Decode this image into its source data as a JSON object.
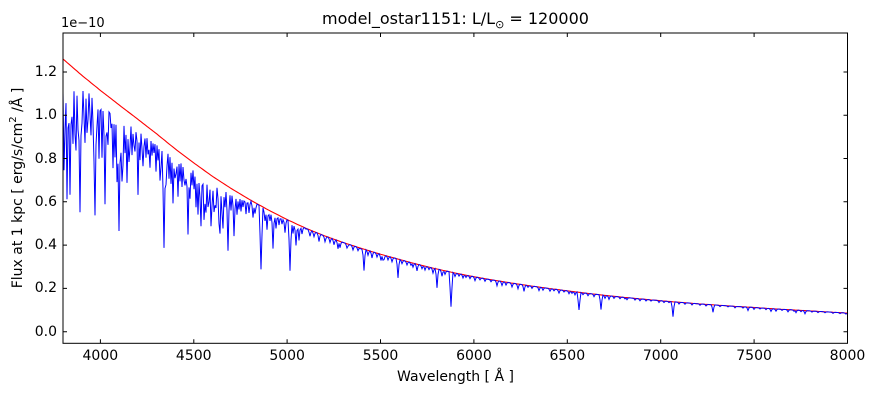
{
  "figure": {
    "background": "#ffffff",
    "frame_color": "#000000"
  },
  "title": {
    "prefix": "model_ostar1151: L/L",
    "sub": "⊙",
    "suffix": " = 120000"
  },
  "axis_labels": {
    "xlabel": "Wavelength [ Å ]",
    "ylabel_prefix": "Flux at 1 kpc [ erg/s/cm",
    "ylabel_sup": "2",
    "ylabel_suffix": " /Å ]",
    "y_offset_text": "1e−10"
  },
  "chart_data": {
    "type": "line",
    "title": "model_ostar1151: L/L⊙ = 120000",
    "xlabel": "Wavelength [ Å ]",
    "ylabel": "Flux at 1 kpc [ erg/s/cm² /Å ]",
    "y_unit_factor": "1e−10",
    "grid": false,
    "legend": "none",
    "xlim": [
      3800,
      8000
    ],
    "ylim": [
      -0.0535,
      1.38
    ],
    "xticks": [
      4000,
      4500,
      5000,
      5500,
      6000,
      6500,
      7000,
      7500,
      8000
    ],
    "yticks": [
      0.0,
      0.2,
      0.4,
      0.6,
      0.8,
      1.0,
      1.2
    ],
    "series": [
      {
        "name": "continuum_model",
        "color": "#ff0000",
        "points": [
          [
            3800,
            1.26
          ],
          [
            3900,
            1.185
          ],
          [
            4000,
            1.115
          ],
          [
            4100,
            1.048
          ],
          [
            4200,
            0.982
          ],
          [
            4300,
            0.915
          ],
          [
            4400,
            0.845
          ],
          [
            4500,
            0.78
          ],
          [
            4600,
            0.718
          ],
          [
            4700,
            0.662
          ],
          [
            4800,
            0.61
          ],
          [
            4900,
            0.562
          ],
          [
            5000,
            0.518
          ],
          [
            5100,
            0.478
          ],
          [
            5200,
            0.443
          ],
          [
            5300,
            0.412
          ],
          [
            5400,
            0.384
          ],
          [
            5500,
            0.358
          ],
          [
            5600,
            0.334
          ],
          [
            5700,
            0.311
          ],
          [
            5800,
            0.29
          ],
          [
            5900,
            0.271
          ],
          [
            6000,
            0.254
          ],
          [
            6100,
            0.239
          ],
          [
            6200,
            0.225
          ],
          [
            6300,
            0.212
          ],
          [
            6400,
            0.2
          ],
          [
            6500,
            0.189
          ],
          [
            6600,
            0.178
          ],
          [
            6700,
            0.168
          ],
          [
            6800,
            0.159
          ],
          [
            6900,
            0.151
          ],
          [
            7000,
            0.143
          ],
          [
            7100,
            0.136
          ],
          [
            7200,
            0.129
          ],
          [
            7300,
            0.123
          ],
          [
            7400,
            0.117
          ],
          [
            7500,
            0.112
          ],
          [
            7600,
            0.106
          ],
          [
            7700,
            0.101
          ],
          [
            7800,
            0.096
          ],
          [
            7900,
            0.091
          ],
          [
            8000,
            0.086
          ]
        ]
      },
      {
        "name": "spectrum",
        "color": "#0000ff",
        "continuum_ref": "continuum_model",
        "line_blanketing": {
          "max_depth": 0.008,
          "zero_at": 5300,
          "full_at": 3800
        },
        "forest_texture": [
          {
            "range": [
              3800,
              4750
            ],
            "prob": 0.6,
            "max_depth": 0.028
          },
          {
            "range": [
              4750,
              5400
            ],
            "prob": 0.3,
            "max_depth": 0.012
          },
          {
            "range": [
              5400,
              8000
            ],
            "prob": 0.12,
            "max_depth": 0.005
          }
        ],
        "absorption_lines": [
          [
            3804,
            0.4
          ],
          [
            3812,
            0.25
          ],
          [
            3819,
            0.5
          ],
          [
            3828,
            0.22
          ],
          [
            3835,
            0.48,
            1.8
          ],
          [
            3846,
            0.18
          ],
          [
            3856,
            0.28
          ],
          [
            3863,
            0.22
          ],
          [
            3872,
            0.3
          ],
          [
            3880,
            0.2
          ],
          [
            3889,
            0.52,
            1.8
          ],
          [
            3903,
            0.18
          ],
          [
            3912,
            0.15
          ],
          [
            3920,
            0.25
          ],
          [
            3927,
            0.2
          ],
          [
            3935,
            0.15
          ],
          [
            3944,
            0.12
          ],
          [
            3950,
            0.18
          ],
          [
            3958,
            0.15
          ],
          [
            3964,
            0.3
          ],
          [
            3970,
            0.52,
            1.8
          ],
          [
            3984,
            0.15
          ],
          [
            3995,
            0.28
          ],
          [
            4009,
            0.25
          ],
          [
            4026,
            0.45,
            1.6
          ],
          [
            4035,
            0.15
          ],
          [
            4041,
            0.2
          ],
          [
            4058,
            0.12
          ],
          [
            4069,
            0.28
          ],
          [
            4076,
            0.22
          ],
          [
            4089,
            0.32
          ],
          [
            4101,
            0.55,
            1.8
          ],
          [
            4110,
            0.2
          ],
          [
            4116,
            0.3
          ],
          [
            4121,
            0.25
          ],
          [
            4132,
            0.18
          ],
          [
            4144,
            0.32
          ],
          [
            4153,
            0.22
          ],
          [
            4161,
            0.15
          ],
          [
            4168,
            0.18
          ],
          [
            4178,
            0.12
          ],
          [
            4186,
            0.15
          ],
          [
            4200,
            0.35
          ],
          [
            4213,
            0.18
          ],
          [
            4222,
            0.12
          ],
          [
            4227,
            0.2
          ],
          [
            4236,
            0.1
          ],
          [
            4242,
            0.15
          ],
          [
            4253,
            0.12
          ],
          [
            4261,
            0.1
          ],
          [
            4267,
            0.18
          ],
          [
            4276,
            0.12
          ],
          [
            4287,
            0.1
          ],
          [
            4297,
            0.18
          ],
          [
            4306,
            0.12
          ],
          [
            4317,
            0.22
          ],
          [
            4326,
            0.15
          ],
          [
            4340,
            0.55,
            1.8
          ],
          [
            4350,
            0.22
          ],
          [
            4358,
            0.12
          ],
          [
            4367,
            0.18
          ],
          [
            4379,
            0.2
          ],
          [
            4388,
            0.28
          ],
          [
            4397,
            0.15
          ],
          [
            4406,
            0.12
          ],
          [
            4415,
            0.22
          ],
          [
            4426,
            0.15
          ],
          [
            4437,
            0.18
          ],
          [
            4447,
            0.12
          ],
          [
            4452,
            0.15
          ],
          [
            4461,
            0.12
          ],
          [
            4471,
            0.42,
            1.6
          ],
          [
            4481,
            0.22
          ],
          [
            4491,
            0.12
          ],
          [
            4501,
            0.15
          ],
          [
            4510,
            0.25
          ],
          [
            4522,
            0.28
          ],
          [
            4531,
            0.18
          ],
          [
            4541,
            0.35
          ],
          [
            4553,
            0.3
          ],
          [
            4562,
            0.2
          ],
          [
            4568,
            0.25
          ],
          [
            4575,
            0.2
          ],
          [
            4583,
            0.15
          ],
          [
            4590,
            0.32
          ],
          [
            4598,
            0.18
          ],
          [
            4607,
            0.22
          ],
          [
            4615,
            0.15
          ],
          [
            4620,
            0.18
          ],
          [
            4629,
            0.12
          ],
          [
            4634,
            0.28
          ],
          [
            4641,
            0.32
          ],
          [
            4649,
            0.2
          ],
          [
            4658,
            0.3
          ],
          [
            4668,
            0.15
          ],
          [
            4676,
            0.12
          ],
          [
            4686,
            0.42,
            1.6
          ],
          [
            4697,
            0.15
          ],
          [
            4713,
            0.32
          ],
          [
            4722,
            0.12
          ],
          [
            4731,
            0.15
          ],
          [
            4740,
            0.1
          ],
          [
            4751,
            0.12
          ],
          [
            4762,
            0.08
          ],
          [
            4780,
            0.12
          ],
          [
            4795,
            0.1
          ],
          [
            4815,
            0.12
          ],
          [
            4828,
            0.08
          ],
          [
            4861,
            0.5,
            1.8
          ],
          [
            4880,
            0.1
          ],
          [
            4893,
            0.16
          ],
          [
            4910,
            0.08
          ],
          [
            4922,
            0.3
          ],
          [
            4938,
            0.12
          ],
          [
            4959,
            0.08
          ],
          [
            4975,
            0.06
          ],
          [
            4991,
            0.12
          ],
          [
            5016,
            0.44,
            1.6
          ],
          [
            5033,
            0.1
          ],
          [
            5048,
            0.2
          ],
          [
            5062,
            0.14
          ],
          [
            5080,
            0.07
          ],
          [
            5120,
            0.06
          ],
          [
            5145,
            0.05
          ],
          [
            5169,
            0.08
          ],
          [
            5205,
            0.06
          ],
          [
            5230,
            0.05
          ],
          [
            5250,
            0.06
          ],
          [
            5270,
            0.09
          ],
          [
            5285,
            0.07
          ],
          [
            5320,
            0.05
          ],
          [
            5350,
            0.05
          ],
          [
            5380,
            0.04
          ],
          [
            5411,
            0.26
          ],
          [
            5435,
            0.06
          ],
          [
            5455,
            0.08
          ],
          [
            5480,
            0.05
          ],
          [
            5504,
            0.08
          ],
          [
            5512,
            0.07
          ],
          [
            5520,
            0.06
          ],
          [
            5540,
            0.05
          ],
          [
            5560,
            0.06
          ],
          [
            5592,
            0.26
          ],
          [
            5615,
            0.05
          ],
          [
            5640,
            0.05
          ],
          [
            5665,
            0.04
          ],
          [
            5675,
            0.06
          ],
          [
            5696,
            0.1
          ],
          [
            5722,
            0.05
          ],
          [
            5740,
            0.06
          ],
          [
            5760,
            0.04
          ],
          [
            5780,
            0.08
          ],
          [
            5803,
            0.3
          ],
          [
            5830,
            0.1
          ],
          [
            5845,
            0.06
          ],
          [
            5876,
            0.58,
            1.8
          ],
          [
            5900,
            0.06
          ],
          [
            5920,
            0.04
          ],
          [
            5940,
            0.06
          ],
          [
            5960,
            0.04
          ],
          [
            5980,
            0.05
          ],
          [
            6004,
            0.07
          ],
          [
            6030,
            0.04
          ],
          [
            6060,
            0.05
          ],
          [
            6090,
            0.04
          ],
          [
            6122,
            0.1
          ],
          [
            6151,
            0.08
          ],
          [
            6170,
            0.06
          ],
          [
            6204,
            0.08
          ],
          [
            6234,
            0.1
          ],
          [
            6266,
            0.14
          ],
          [
            6290,
            0.04
          ],
          [
            6310,
            0.05
          ],
          [
            6347,
            0.08
          ],
          [
            6371,
            0.06
          ],
          [
            6406,
            0.06
          ],
          [
            6430,
            0.04
          ],
          [
            6454,
            0.08
          ],
          [
            6480,
            0.04
          ],
          [
            6507,
            0.07
          ],
          [
            6527,
            0.05
          ],
          [
            6540,
            0.08
          ],
          [
            6563,
            0.45,
            1.8
          ],
          [
            6585,
            0.05
          ],
          [
            6613,
            0.06
          ],
          [
            6641,
            0.07
          ],
          [
            6678,
            0.4,
            1.5
          ],
          [
            6701,
            0.08
          ],
          [
            6721,
            0.1
          ],
          [
            6750,
            0.06
          ],
          [
            6780,
            0.05
          ],
          [
            6810,
            0.04
          ],
          [
            6820,
            0.06
          ],
          [
            6860,
            0.05
          ],
          [
            6890,
            0.06
          ],
          [
            6920,
            0.05
          ],
          [
            6950,
            0.04
          ],
          [
            6990,
            0.06
          ],
          [
            7020,
            0.05
          ],
          [
            7042,
            0.04
          ],
          [
            7065,
            0.5,
            1.5
          ],
          [
            7100,
            0.06
          ],
          [
            7130,
            0.05
          ],
          [
            7170,
            0.06
          ],
          [
            7210,
            0.05
          ],
          [
            7241,
            0.06
          ],
          [
            7281,
            0.28
          ],
          [
            7320,
            0.05
          ],
          [
            7360,
            0.04
          ],
          [
            7400,
            0.06
          ],
          [
            7440,
            0.05
          ],
          [
            7468,
            0.14
          ],
          [
            7500,
            0.08
          ],
          [
            7530,
            0.05
          ],
          [
            7565,
            0.06
          ],
          [
            7593,
            0.12
          ],
          [
            7615,
            0.1
          ],
          [
            7650,
            0.05
          ],
          [
            7683,
            0.1
          ],
          [
            7712,
            0.06
          ],
          [
            7726,
            0.12
          ],
          [
            7749,
            0.06
          ],
          [
            7774,
            0.15
          ],
          [
            7810,
            0.05
          ],
          [
            7840,
            0.06
          ],
          [
            7880,
            0.05
          ],
          [
            7920,
            0.06
          ],
          [
            7960,
            0.05
          ],
          [
            7990,
            0.06
          ]
        ]
      }
    ]
  }
}
